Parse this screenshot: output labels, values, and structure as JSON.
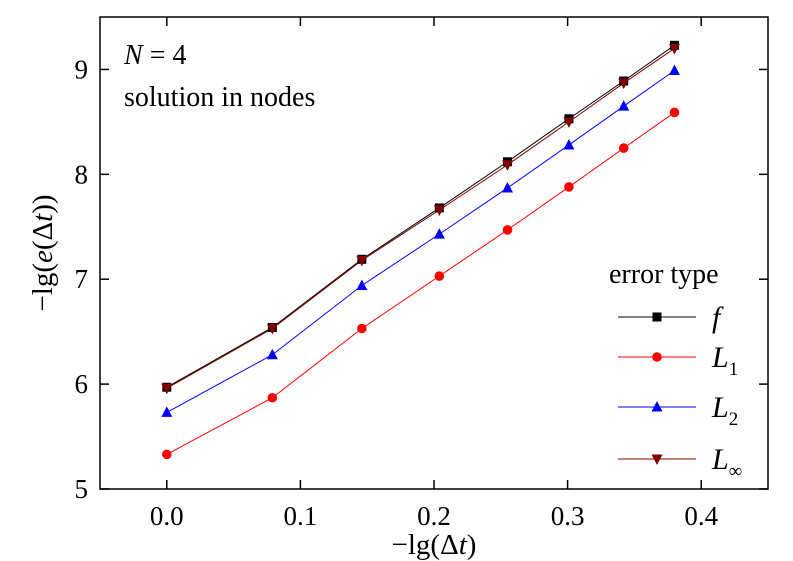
{
  "chart_data": {
    "type": "line",
    "xlabel": "−lg(Δt)",
    "ylabel": "−lg(e(Δt))",
    "xlim": [
      -0.05,
      0.45
    ],
    "ylim": [
      5,
      9.5
    ],
    "xticks": [
      "0.0",
      "0.1",
      "0.2",
      "0.3",
      "0.4"
    ],
    "yticks": [
      "5",
      "6",
      "7",
      "8",
      "9"
    ],
    "grid": false,
    "annotations": [
      "N = 4",
      "solution in nodes"
    ],
    "legend": {
      "title": "error type",
      "placement": "right"
    },
    "x": [
      0.0,
      0.079,
      0.146,
      0.204,
      0.255,
      0.301,
      0.342,
      0.38
    ],
    "series": [
      {
        "name": "f",
        "label_main": "f",
        "label_sub": "",
        "color": "#000000",
        "marker": "square",
        "values": [
          5.97,
          6.54,
          7.19,
          7.68,
          8.12,
          8.53,
          8.89,
          9.23
        ]
      },
      {
        "name": "L1",
        "label_main": "L",
        "label_sub": "1",
        "color": "#ff0000",
        "marker": "circle",
        "values": [
          5.33,
          5.87,
          6.53,
          7.03,
          7.47,
          7.88,
          8.25,
          8.59
        ]
      },
      {
        "name": "L2",
        "label_main": "L",
        "label_sub": "2",
        "color": "#0000ff",
        "marker": "triangle-up",
        "values": [
          5.73,
          6.28,
          6.94,
          7.43,
          7.87,
          8.28,
          8.65,
          8.99
        ]
      },
      {
        "name": "L∞",
        "label_main": "L",
        "label_sub": "∞",
        "color": "#800000",
        "marker": "triangle-down",
        "values": [
          5.96,
          6.53,
          7.18,
          7.66,
          8.09,
          8.5,
          8.87,
          9.2
        ]
      }
    ]
  }
}
